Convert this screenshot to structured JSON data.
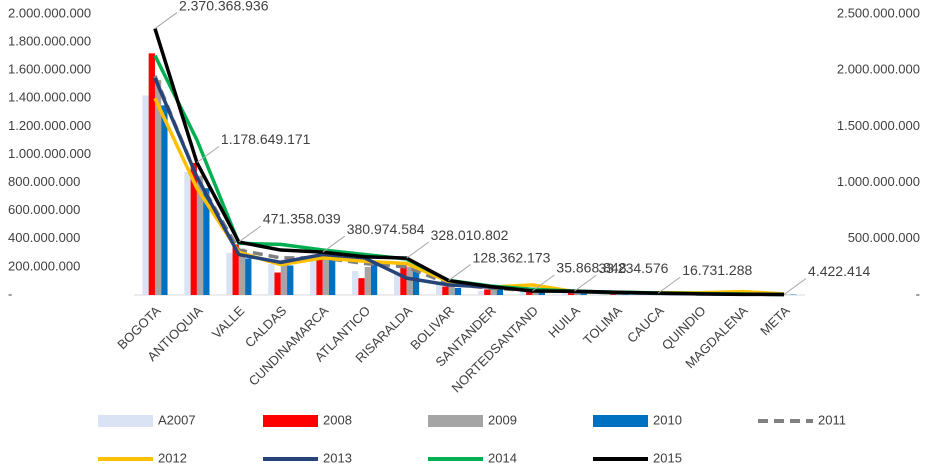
{
  "chart_data": {
    "type": "combo",
    "categories": [
      "BOGOTA",
      "ANTIOQUIA",
      "VALLE",
      "CALDAS",
      "CUNDINAMARCA",
      "ATLANTICO",
      "RISARALDA",
      "BOLIVAR",
      "SANTANDER",
      "NORTEDSANTAND",
      "HUILA",
      "TOLIMA",
      "CAUCA",
      "QUINDIO",
      "MAGDALENA",
      "META"
    ],
    "ylim": [
      0,
      2000000000
    ],
    "yticks": [
      {
        "value": 0,
        "label": "-"
      },
      {
        "value": 200000000,
        "label": "200.000.000"
      },
      {
        "value": 400000000,
        "label": "400.000.000"
      },
      {
        "value": 600000000,
        "label": "600.000.000"
      },
      {
        "value": 800000000,
        "label": "800.000.000"
      },
      {
        "value": 1000000000,
        "label": "1.000.000.000"
      },
      {
        "value": 1200000000,
        "label": "1.200.000.000"
      },
      {
        "value": 1400000000,
        "label": "1.400.000.000"
      },
      {
        "value": 1600000000,
        "label": "1.600.000.000"
      },
      {
        "value": 1800000000,
        "label": "1.800.000.000"
      },
      {
        "value": 2000000000,
        "label": "2.000.000.000"
      }
    ],
    "y2lim": [
      0,
      2500000000
    ],
    "y2ticks": [
      {
        "value": 0,
        "label": "-"
      },
      {
        "value": 500000000,
        "label": "500.000.000"
      },
      {
        "value": 1000000000,
        "label": "1.000.000.000"
      },
      {
        "value": 1500000000,
        "label": "1.500.000.000"
      },
      {
        "value": 2000000000,
        "label": "2.000.000.000"
      },
      {
        "value": 2500000000,
        "label": "2.500.000.000"
      }
    ],
    "series": [
      {
        "name": "A2007",
        "type": "bar",
        "color": "#dae3f3",
        "values": [
          1420000000,
          875000000,
          300000000,
          220000000,
          260000000,
          170000000,
          170000000,
          80000000,
          30000000,
          30000000,
          20000000,
          10000000,
          10000000,
          5000000,
          5000000,
          3000000
        ]
      },
      {
        "name": "2008",
        "type": "bar",
        "color": "#ff0000",
        "values": [
          1720000000,
          940000000,
          360000000,
          160000000,
          290000000,
          120000000,
          210000000,
          60000000,
          40000000,
          30000000,
          20000000,
          10000000,
          10000000,
          5000000,
          5000000,
          3000000
        ]
      },
      {
        "name": "2009",
        "type": "bar",
        "color": "#a5a5a5",
        "values": [
          1530000000,
          850000000,
          330000000,
          250000000,
          280000000,
          200000000,
          200000000,
          70000000,
          40000000,
          30000000,
          20000000,
          10000000,
          10000000,
          5000000,
          5000000,
          3000000
        ]
      },
      {
        "name": "2010",
        "type": "bar",
        "color": "#0070c0",
        "values": [
          1350000000,
          760000000,
          260000000,
          210000000,
          260000000,
          240000000,
          170000000,
          50000000,
          50000000,
          40000000,
          20000000,
          10000000,
          10000000,
          5000000,
          5000000,
          3000000
        ]
      },
      {
        "name": "2011",
        "type": "line",
        "axis": "y2",
        "line_style": "dashed",
        "color": "#808080",
        "values": [
          1950000000,
          1050000000,
          400000000,
          330000000,
          330000000,
          280000000,
          250000000,
          100000000,
          60000000,
          40000000,
          30000000,
          20000000,
          15000000,
          10000000,
          8000000,
          5000000
        ]
      },
      {
        "name": "2012",
        "type": "line",
        "axis": "y2",
        "color": "#ffc000",
        "values": [
          1750000000,
          950000000,
          380000000,
          270000000,
          330000000,
          300000000,
          280000000,
          120000000,
          70000000,
          90000000,
          30000000,
          20000000,
          20000000,
          20000000,
          30000000,
          10000000
        ]
      },
      {
        "name": "2013",
        "type": "line",
        "axis": "y2",
        "color": "#264478",
        "values": [
          1930000000,
          1050000000,
          360000000,
          290000000,
          360000000,
          330000000,
          150000000,
          90000000,
          70000000,
          50000000,
          30000000,
          20000000,
          15000000,
          10000000,
          8000000,
          5000000
        ]
      },
      {
        "name": "2014",
        "type": "line",
        "axis": "y2",
        "color": "#00b050",
        "values": [
          2130000000,
          1380000000,
          460000000,
          450000000,
          400000000,
          360000000,
          320000000,
          130000000,
          80000000,
          50000000,
          35000000,
          25000000,
          18000000,
          12000000,
          8000000,
          5000000
        ]
      },
      {
        "name": "2015",
        "type": "line",
        "axis": "y2",
        "color": "#000000",
        "values": [
          2370368936,
          1178649171,
          471358039,
          400000000,
          380974584,
          340000000,
          328010802,
          128362173,
          75000000,
          35868848,
          33234576,
          25000000,
          16731288,
          10000000,
          6000000,
          4422414
        ],
        "value_labels": [
          "2.370.368.936",
          "1.178.649.171",
          "471.358.039",
          null,
          "380.974.584",
          null,
          "328.010.802",
          "128.362.173",
          null,
          "35.868.848",
          "33.234.576",
          null,
          "16.731.288",
          null,
          null,
          "4.422.414"
        ]
      }
    ]
  }
}
